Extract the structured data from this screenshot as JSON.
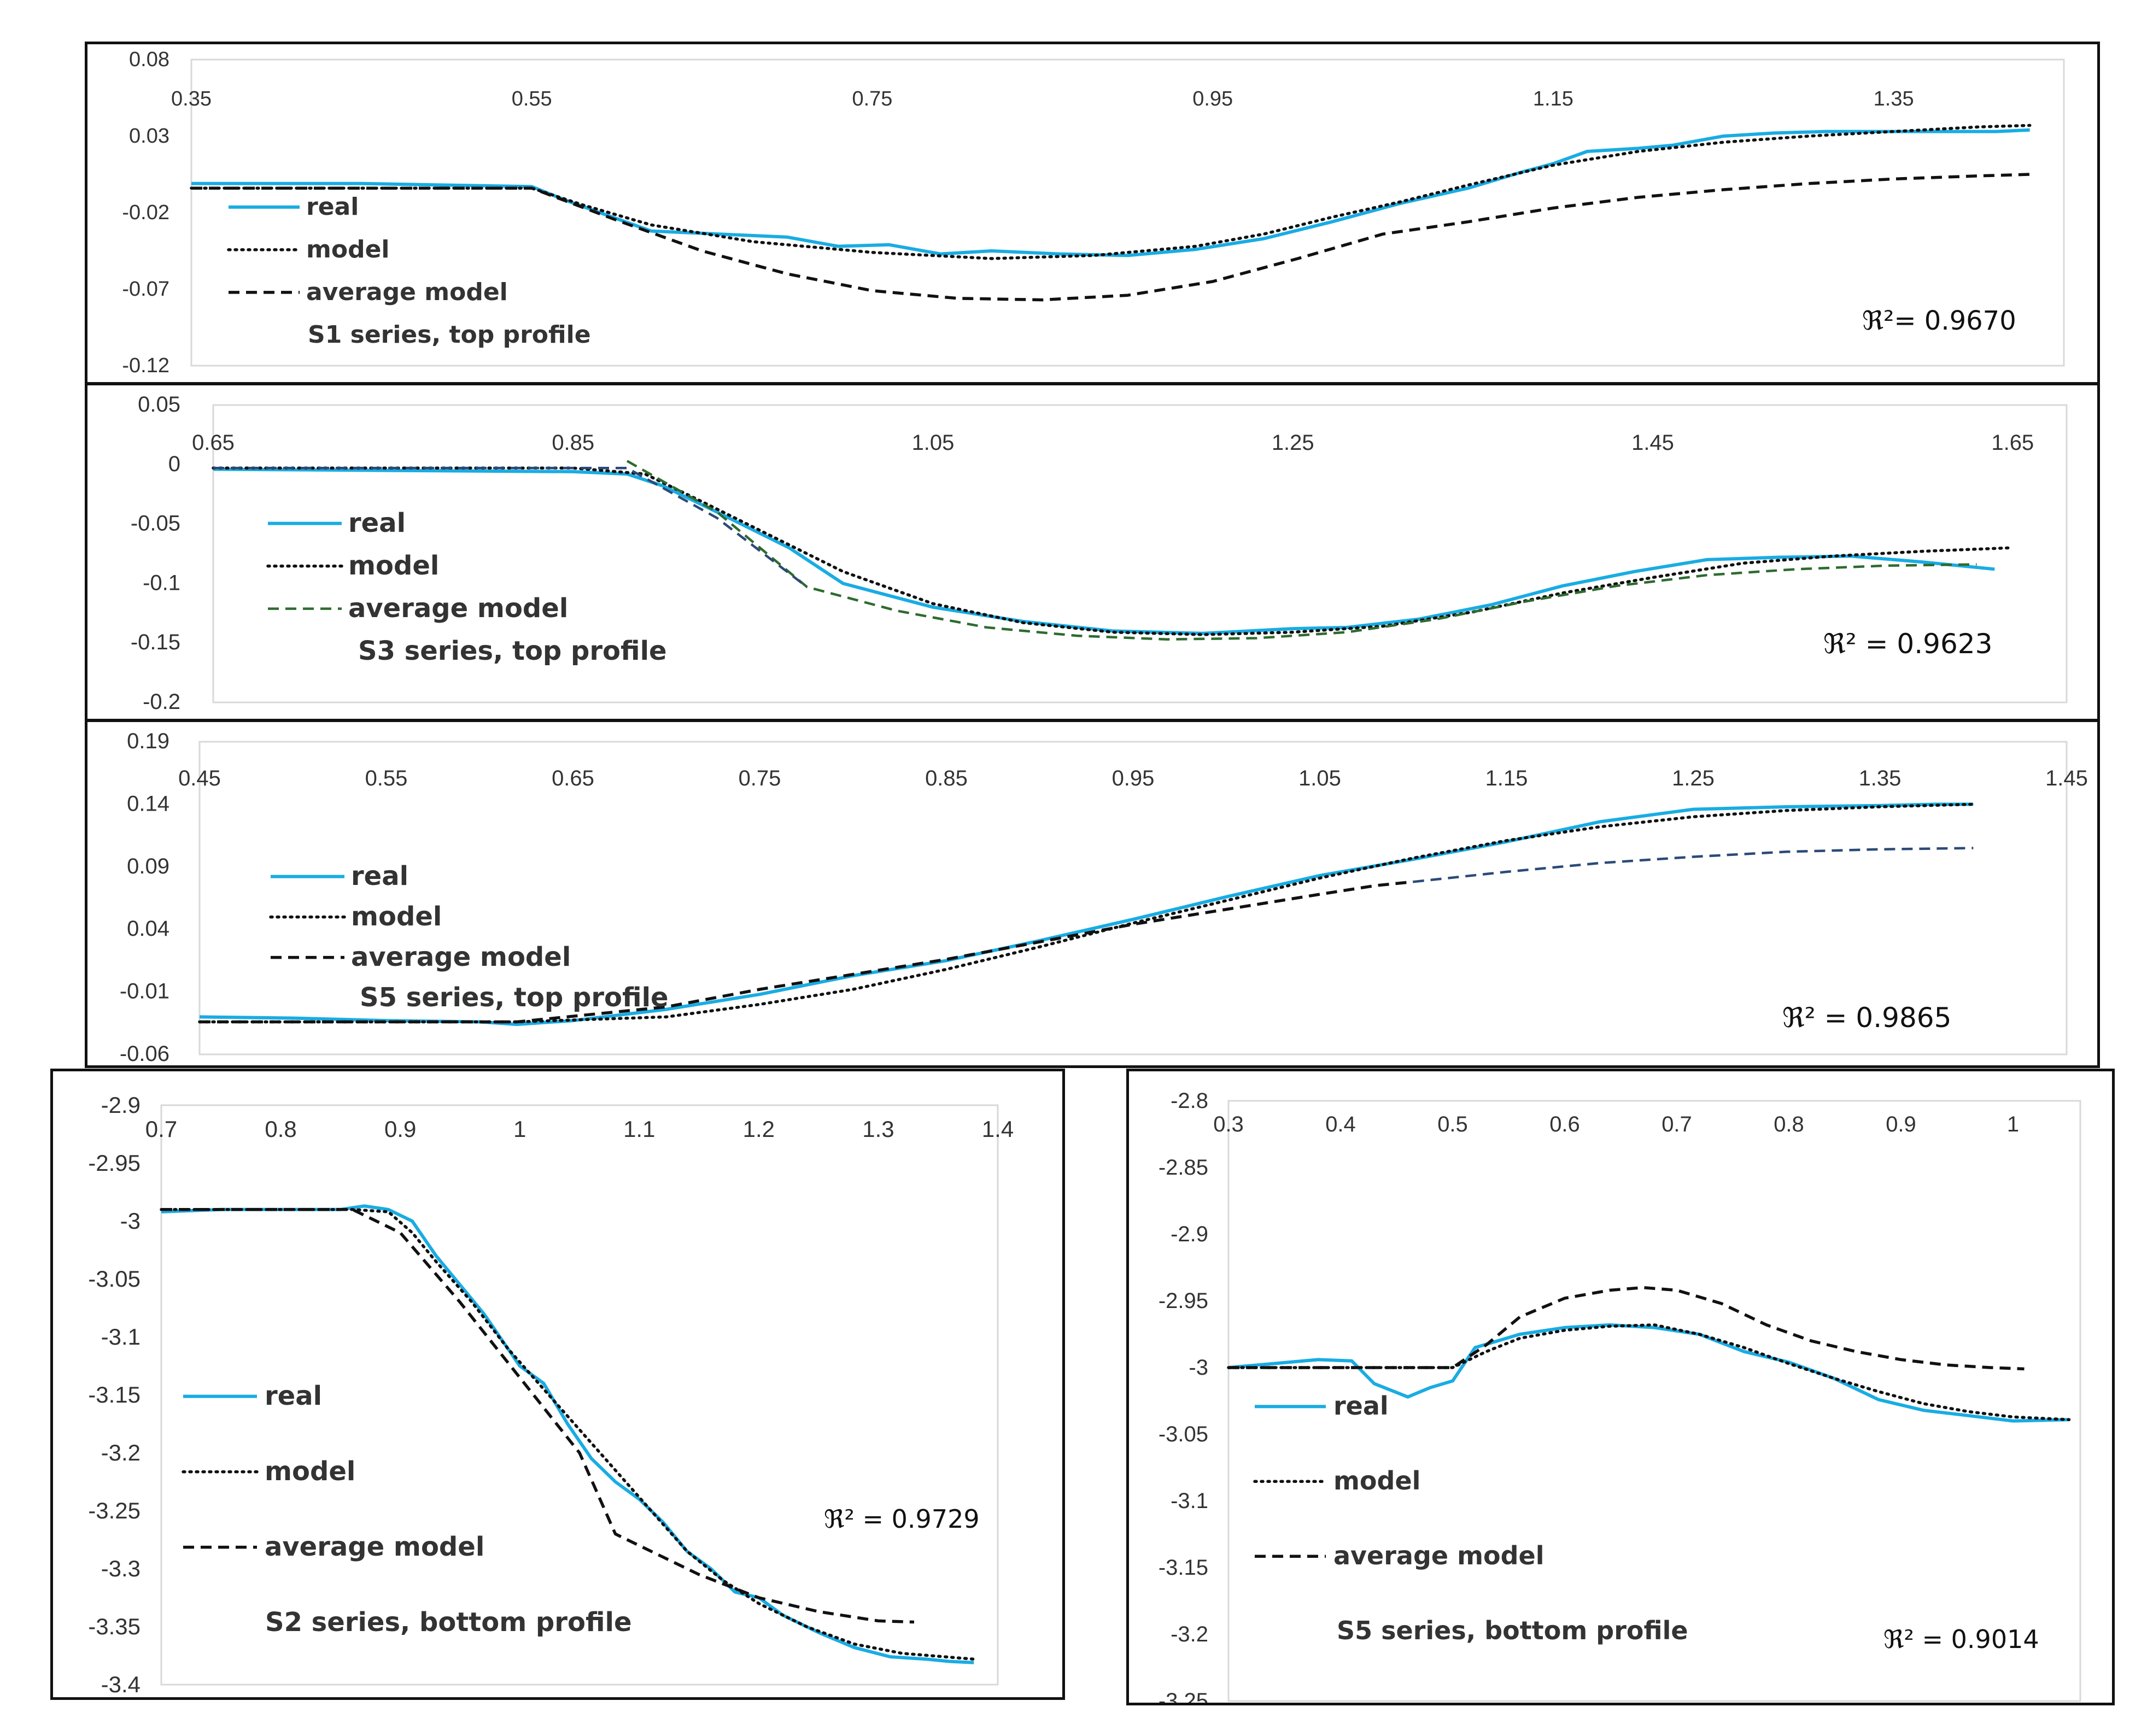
{
  "colors": {
    "real": "#19ace3",
    "model": "#111111",
    "average": "#111111",
    "average_s3": "#2e6b2e",
    "average_s3_seg": "#2b4a78",
    "average_s5_seg": "#2b4a78"
  },
  "chart_data": [
    {
      "id": "s1",
      "type": "line",
      "title": "S1 series, top profile",
      "xlabel": "",
      "ylabel": "",
      "xlim": [
        0.35,
        1.45
      ],
      "ylim": [
        -0.12,
        0.08
      ],
      "xticks": [
        0.35,
        0.55,
        0.75,
        0.95,
        1.15,
        1.35
      ],
      "xtick_labels": [
        "0.35",
        "0.55",
        "0.75",
        "0.95",
        "1.15",
        "1.35"
      ],
      "yticks": [
        0.08,
        0.03,
        -0.02,
        -0.07,
        -0.12
      ],
      "ytick_labels": [
        "0.08",
        "0.03",
        "-0.02",
        "-0.07",
        "-0.12"
      ],
      "legend": [
        "real",
        "model",
        "average model"
      ],
      "r2_label": "ℜ²= 0.9670",
      "series": [
        {
          "name": "real",
          "style": "real",
          "x": [
            0.35,
            0.4,
            0.45,
            0.5,
            0.55,
            0.57,
            0.59,
            0.62,
            0.66,
            0.7,
            0.73,
            0.76,
            0.79,
            0.82,
            0.86,
            0.9,
            0.94,
            0.98,
            1.02,
            1.06,
            1.1,
            1.13,
            1.15,
            1.17,
            1.2,
            1.22,
            1.25,
            1.28,
            1.31,
            1.35,
            1.38,
            1.41,
            1.43
          ],
          "y": [
            -0.001,
            -0.001,
            -0.001,
            -0.002,
            -0.003,
            -0.012,
            -0.02,
            -0.032,
            -0.034,
            -0.036,
            -0.042,
            -0.041,
            -0.047,
            -0.045,
            -0.047,
            -0.048,
            -0.044,
            -0.037,
            -0.026,
            -0.014,
            -0.004,
            0.006,
            0.012,
            0.02,
            0.022,
            0.024,
            0.03,
            0.032,
            0.033,
            0.033,
            0.033,
            0.033,
            0.034
          ]
        },
        {
          "name": "model",
          "style": "model",
          "x": [
            0.35,
            0.45,
            0.55,
            0.58,
            0.62,
            0.68,
            0.75,
            0.82,
            0.88,
            0.94,
            0.98,
            1.02,
            1.06,
            1.1,
            1.15,
            1.2,
            1.25,
            1.3,
            1.35,
            1.4,
            1.43
          ],
          "y": [
            -0.004,
            -0.004,
            -0.004,
            -0.015,
            -0.028,
            -0.039,
            -0.046,
            -0.05,
            -0.048,
            -0.042,
            -0.034,
            -0.023,
            -0.013,
            -0.002,
            0.011,
            0.02,
            0.026,
            0.03,
            0.033,
            0.036,
            0.037
          ]
        },
        {
          "name": "average model",
          "style": "average",
          "x": [
            0.35,
            0.45,
            0.55,
            0.6,
            0.65,
            0.7,
            0.75,
            0.8,
            0.85,
            0.9,
            0.95,
            1.0,
            1.05,
            1.1,
            1.15,
            1.2,
            1.25,
            1.3,
            1.35,
            1.4,
            1.43
          ],
          "y": [
            -0.004,
            -0.004,
            -0.004,
            -0.025,
            -0.045,
            -0.06,
            -0.071,
            -0.076,
            -0.077,
            -0.074,
            -0.065,
            -0.05,
            -0.034,
            -0.026,
            -0.017,
            -0.01,
            -0.005,
            -0.001,
            0.002,
            0.004,
            0.005
          ]
        }
      ]
    },
    {
      "id": "s3",
      "type": "line",
      "title": "S3 series, top profile",
      "xlabel": "",
      "ylabel": "",
      "xlim": [
        0.65,
        1.68
      ],
      "ylim": [
        -0.2,
        0.05
      ],
      "xticks": [
        0.65,
        0.85,
        1.05,
        1.25,
        1.45,
        1.65
      ],
      "xtick_labels": [
        "0.65",
        "0.85",
        "1.05",
        "1.25",
        "1.45",
        "1.65"
      ],
      "yticks": [
        0.05,
        0,
        -0.05,
        -0.1,
        -0.15,
        -0.2
      ],
      "ytick_labels": [
        "0.05",
        "0",
        "-0.05",
        "-0.1",
        "-0.15",
        "-0.2"
      ],
      "legend": [
        "real",
        "model",
        "average model"
      ],
      "r2_label": "ℜ² = 0.9623",
      "series": [
        {
          "name": "real",
          "style": "real",
          "x": [
            0.65,
            0.75,
            0.85,
            0.88,
            0.9,
            0.93,
            0.97,
            1.0,
            1.05,
            1.1,
            1.15,
            1.2,
            1.25,
            1.28,
            1.32,
            1.36,
            1.4,
            1.44,
            1.48,
            1.52,
            1.56,
            1.6,
            1.64
          ],
          "y": [
            -0.004,
            -0.005,
            -0.006,
            -0.008,
            -0.018,
            -0.04,
            -0.07,
            -0.1,
            -0.12,
            -0.132,
            -0.14,
            -0.142,
            -0.138,
            -0.137,
            -0.13,
            -0.118,
            -0.102,
            -0.09,
            -0.08,
            -0.078,
            -0.077,
            -0.082,
            -0.088
          ]
        },
        {
          "name": "model",
          "style": "model",
          "x": [
            0.65,
            0.75,
            0.85,
            0.89,
            0.92,
            0.96,
            1.0,
            1.05,
            1.1,
            1.15,
            1.2,
            1.25,
            1.3,
            1.35,
            1.4,
            1.45,
            1.5,
            1.55,
            1.6,
            1.65
          ],
          "y": [
            -0.003,
            -0.003,
            -0.003,
            -0.008,
            -0.03,
            -0.06,
            -0.09,
            -0.117,
            -0.133,
            -0.141,
            -0.143,
            -0.141,
            -0.136,
            -0.124,
            -0.108,
            -0.095,
            -0.083,
            -0.077,
            -0.073,
            -0.07
          ]
        },
        {
          "name": "average model",
          "style": "average_s3",
          "x": [
            0.88,
            0.93,
            0.98,
            1.03,
            1.08,
            1.13,
            1.18,
            1.23,
            1.28,
            1.33,
            1.38,
            1.43,
            1.48,
            1.53,
            1.58,
            1.63
          ],
          "y": [
            0.003,
            -0.04,
            -0.103,
            -0.123,
            -0.137,
            -0.144,
            -0.147,
            -0.146,
            -0.141,
            -0.13,
            -0.115,
            -0.102,
            -0.093,
            -0.088,
            -0.085,
            -0.084
          ]
        },
        {
          "name": "average model (segment)",
          "style": "average_s3_seg",
          "x": [
            0.65,
            0.75,
            0.85,
            0.88,
            0.93,
            0.98
          ],
          "y": [
            -0.003,
            -0.003,
            -0.003,
            -0.003,
            -0.045,
            -0.103
          ]
        }
      ]
    },
    {
      "id": "s5top",
      "type": "line",
      "title": "S5 series, top profile",
      "xlabel": "",
      "ylabel": "",
      "xlim": [
        0.45,
        1.45
      ],
      "ylim": [
        -0.06,
        0.19
      ],
      "xticks": [
        0.45,
        0.55,
        0.65,
        0.75,
        0.85,
        0.95,
        1.05,
        1.15,
        1.25,
        1.35,
        1.45
      ],
      "xtick_labels": [
        "0.45",
        "0.55",
        "0.65",
        "0.75",
        "0.85",
        "0.95",
        "1.05",
        "1.15",
        "1.25",
        "1.35",
        "1.45"
      ],
      "yticks": [
        0.19,
        0.14,
        0.09,
        0.04,
        -0.01,
        -0.06
      ],
      "ytick_labels": [
        "0.19",
        "0.14",
        "0.09",
        "0.04",
        "-0.01",
        "-0.06"
      ],
      "legend": [
        "real",
        "model",
        "average model"
      ],
      "r2_label": "ℜ² = 0.9865",
      "series": [
        {
          "name": "real",
          "style": "real",
          "x": [
            0.45,
            0.5,
            0.55,
            0.6,
            0.62,
            0.65,
            0.7,
            0.75,
            0.8,
            0.85,
            0.9,
            0.95,
            1.0,
            1.05,
            1.1,
            1.15,
            1.2,
            1.25,
            1.3,
            1.35,
            1.38,
            1.4
          ],
          "y": [
            -0.03,
            -0.031,
            -0.033,
            -0.034,
            -0.036,
            -0.033,
            -0.024,
            -0.012,
            0.003,
            0.015,
            0.031,
            0.048,
            0.066,
            0.083,
            0.096,
            0.11,
            0.126,
            0.136,
            0.138,
            0.139,
            0.14,
            0.14
          ]
        },
        {
          "name": "model",
          "style": "model",
          "x": [
            0.45,
            0.55,
            0.62,
            0.7,
            0.75,
            0.8,
            0.85,
            0.9,
            0.95,
            1.0,
            1.05,
            1.1,
            1.15,
            1.2,
            1.25,
            1.3,
            1.35,
            1.4
          ],
          "y": [
            -0.034,
            -0.034,
            -0.034,
            -0.03,
            -0.02,
            -0.008,
            0.008,
            0.026,
            0.045,
            0.063,
            0.081,
            0.097,
            0.111,
            0.122,
            0.13,
            0.135,
            0.138,
            0.14
          ]
        },
        {
          "name": "average model",
          "style": "average",
          "x": [
            0.45,
            0.55,
            0.62,
            0.7,
            0.75,
            0.8,
            0.85,
            0.9,
            0.95,
            1.0,
            1.05,
            1.08,
            1.1
          ],
          "y": [
            -0.034,
            -0.034,
            -0.034,
            -0.022,
            -0.008,
            0.004,
            0.016,
            0.03,
            0.044,
            0.056,
            0.068,
            0.075,
            0.078
          ]
        },
        {
          "name": "average model (segment)",
          "style": "average_s5_seg",
          "x": [
            1.1,
            1.15,
            1.2,
            1.25,
            1.3,
            1.35,
            1.4
          ],
          "y": [
            0.078,
            0.086,
            0.093,
            0.098,
            0.102,
            0.104,
            0.105
          ]
        }
      ]
    },
    {
      "id": "s2",
      "type": "line",
      "title": "S2 series, bottom profile",
      "xlabel": "",
      "ylabel": "",
      "xlim": [
        0.7,
        1.4
      ],
      "ylim": [
        -3.4,
        -2.9
      ],
      "xticks": [
        0.7,
        0.8,
        0.9,
        1.0,
        1.1,
        1.2,
        1.3,
        1.4
      ],
      "xtick_labels": [
        "0.7",
        "0.8",
        "0.9",
        "1",
        "1.1",
        "1.2",
        "1.3",
        "1.4"
      ],
      "yticks": [
        -2.9,
        -2.95,
        -3.0,
        -3.05,
        -3.1,
        -3.15,
        -3.2,
        -3.25,
        -3.3,
        -3.35,
        -3.4
      ],
      "ytick_labels": [
        "-2.9",
        "-2.95",
        "-3",
        "-3.05",
        "-3.1",
        "-3.15",
        "-3.2",
        "-3.25",
        "-3.3",
        "-3.35",
        "-3.4"
      ],
      "legend": [
        "real",
        "model",
        "average model"
      ],
      "r2_label": "ℜ² = 0.9729",
      "series": [
        {
          "name": "real",
          "style": "real",
          "x": [
            0.7,
            0.75,
            0.8,
            0.85,
            0.87,
            0.89,
            0.91,
            0.93,
            0.95,
            0.97,
            0.99,
            1.0,
            1.02,
            1.04,
            1.06,
            1.08,
            1.1,
            1.12,
            1.14,
            1.16,
            1.18,
            1.2,
            1.22,
            1.25,
            1.28,
            1.31,
            1.34,
            1.36,
            1.38
          ],
          "y": [
            -2.992,
            -2.99,
            -2.99,
            -2.99,
            -2.987,
            -2.99,
            -3.0,
            -3.03,
            -3.055,
            -3.08,
            -3.11,
            -3.125,
            -3.14,
            -3.175,
            -3.205,
            -3.225,
            -3.24,
            -3.26,
            -3.285,
            -3.3,
            -3.32,
            -3.325,
            -3.34,
            -3.355,
            -3.368,
            -3.376,
            -3.378,
            -3.38,
            -3.381
          ]
        },
        {
          "name": "model",
          "style": "model",
          "x": [
            0.7,
            0.8,
            0.86,
            0.89,
            0.91,
            0.93,
            0.96,
            0.99,
            1.02,
            1.05,
            1.08,
            1.11,
            1.14,
            1.17,
            1.2,
            1.24,
            1.28,
            1.32,
            1.38
          ],
          "y": [
            -2.99,
            -2.99,
            -2.99,
            -2.992,
            -3.01,
            -3.035,
            -3.07,
            -3.11,
            -3.145,
            -3.18,
            -3.215,
            -3.25,
            -3.285,
            -3.31,
            -3.33,
            -3.35,
            -3.365,
            -3.373,
            -3.378
          ]
        },
        {
          "name": "average model",
          "style": "average",
          "x": [
            0.7,
            0.8,
            0.86,
            0.9,
            0.95,
            1.0,
            1.05,
            1.08,
            1.1,
            1.15,
            1.2,
            1.25,
            1.3,
            1.33
          ],
          "y": [
            -2.99,
            -2.99,
            -2.99,
            -3.01,
            -3.07,
            -3.135,
            -3.2,
            -3.27,
            -3.28,
            -3.305,
            -3.325,
            -3.337,
            -3.345,
            -3.346
          ]
        }
      ]
    },
    {
      "id": "s5bottom",
      "type": "line",
      "title": "S5 series, bottom profile",
      "xlabel": "",
      "ylabel": "",
      "xlim": [
        0.3,
        1.06
      ],
      "ylim": [
        -3.25,
        -2.8
      ],
      "xticks": [
        0.3,
        0.4,
        0.5,
        0.6,
        0.7,
        0.8,
        0.9,
        1.0
      ],
      "xtick_labels": [
        "0.3",
        "0.4",
        "0.5",
        "0.6",
        "0.7",
        "0.8",
        "0.9",
        "1"
      ],
      "yticks": [
        -2.8,
        -2.85,
        -2.9,
        -2.95,
        -3.0,
        -3.05,
        -3.1,
        -3.15,
        -3.2,
        -3.25
      ],
      "ytick_labels": [
        "-2.8",
        "-2.85",
        "-2.9",
        "-2.95",
        "-3",
        "-3.05",
        "-3.1",
        "-3.15",
        "-3.2",
        "-3.25"
      ],
      "legend": [
        "real",
        "model",
        "average model"
      ],
      "r2_label": "ℜ² = 0.9014",
      "series": [
        {
          "name": "real",
          "style": "real",
          "x": [
            0.3,
            0.34,
            0.38,
            0.41,
            0.43,
            0.46,
            0.48,
            0.5,
            0.52,
            0.54,
            0.56,
            0.6,
            0.64,
            0.68,
            0.72,
            0.76,
            0.8,
            0.84,
            0.88,
            0.92,
            0.96,
            1.0,
            1.05
          ],
          "y": [
            -3.0,
            -2.997,
            -2.994,
            -2.995,
            -3.012,
            -3.022,
            -3.015,
            -3.01,
            -2.985,
            -2.98,
            -2.975,
            -2.97,
            -2.968,
            -2.97,
            -2.975,
            -2.988,
            -2.996,
            -3.008,
            -3.024,
            -3.032,
            -3.036,
            -3.04,
            -3.039
          ]
        },
        {
          "name": "model",
          "style": "model",
          "x": [
            0.3,
            0.4,
            0.5,
            0.53,
            0.56,
            0.6,
            0.64,
            0.68,
            0.72,
            0.76,
            0.8,
            0.84,
            0.88,
            0.92,
            0.96,
            1.0,
            1.05
          ],
          "y": [
            -3.0,
            -3.0,
            -3.0,
            -2.988,
            -2.978,
            -2.972,
            -2.969,
            -2.968,
            -2.975,
            -2.985,
            -2.997,
            -3.008,
            -3.018,
            -3.027,
            -3.033,
            -3.037,
            -3.039
          ]
        },
        {
          "name": "average model",
          "style": "average",
          "x": [
            0.3,
            0.4,
            0.5,
            0.53,
            0.56,
            0.6,
            0.64,
            0.67,
            0.7,
            0.74,
            0.78,
            0.82,
            0.86,
            0.9,
            0.94,
            0.98,
            1.01
          ],
          "y": [
            -3.0,
            -3.0,
            -3.0,
            -2.983,
            -2.962,
            -2.948,
            -2.942,
            -2.94,
            -2.942,
            -2.952,
            -2.968,
            -2.98,
            -2.988,
            -2.994,
            -2.998,
            -3.0,
            -3.001
          ]
        }
      ]
    }
  ]
}
